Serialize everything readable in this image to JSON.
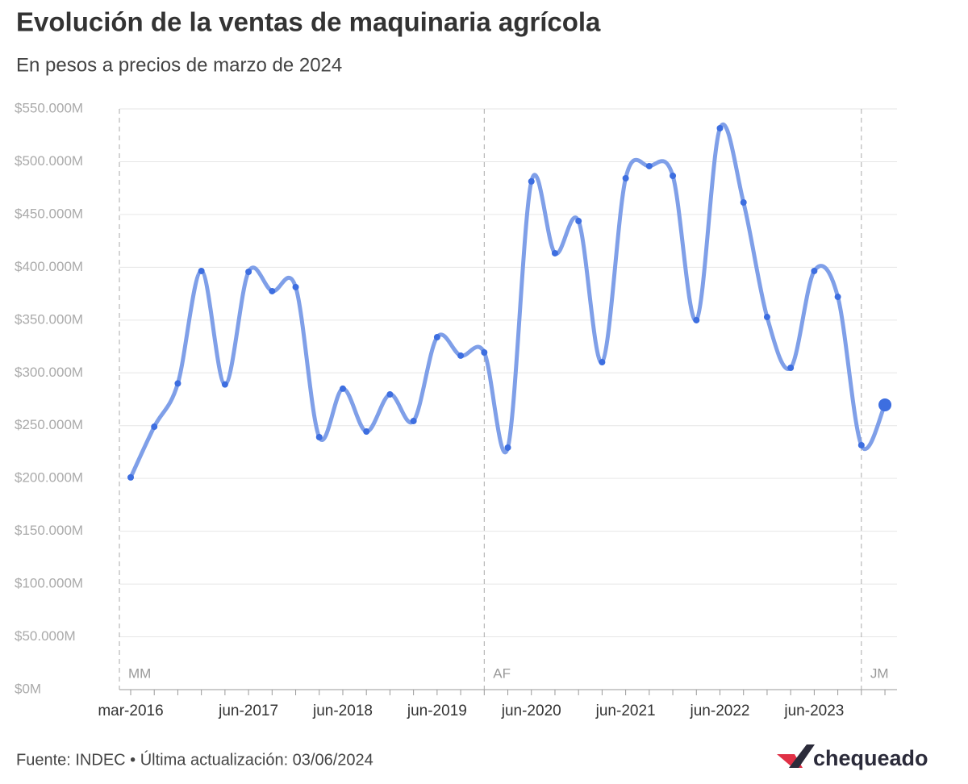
{
  "chart_data": {
    "type": "line",
    "title": "Evolución de la ventas de maquinaria agrícola",
    "subtitle": "En pesos a precios de marzo de 2024",
    "source": "Fuente: INDEC • Última actualización: 03/06/2024",
    "brand": "chequeado",
    "categories": [
      "mar-2016",
      null,
      null,
      null,
      null,
      "jun-2017",
      null,
      null,
      null,
      "jun-2018",
      null,
      null,
      null,
      "jun-2019",
      null,
      null,
      null,
      "jun-2020",
      null,
      null,
      null,
      "jun-2021",
      null,
      null,
      null,
      "jun-2022",
      null,
      null,
      null,
      "jun-2023",
      null,
      null,
      null
    ],
    "series": [
      {
        "color": "#7f9fe8",
        "values": [
          201000,
          249000,
          290000,
          396500,
          289000,
          395700,
          377400,
          381200,
          239100,
          285000,
          244400,
          279600,
          254400,
          333800,
          316300,
          319300,
          229200,
          481300,
          413300,
          443800,
          310100,
          484300,
          495800,
          486600,
          349900,
          531700,
          461400,
          352900,
          304800,
          396500,
          372000,
          231500,
          269700
        ]
      }
    ],
    "ylim": [
      0,
      550000
    ],
    "yticks": [
      {
        "value": 0,
        "label": "$0M"
      },
      {
        "value": 50000,
        "label": "$50.000M"
      },
      {
        "value": 100000,
        "label": "$100.000M"
      },
      {
        "value": 150000,
        "label": "$150.000M"
      },
      {
        "value": 200000,
        "label": "$200.000M"
      },
      {
        "value": 250000,
        "label": "$250.000M"
      },
      {
        "value": 300000,
        "label": "$300.000M"
      },
      {
        "value": 350000,
        "label": "$350.000M"
      },
      {
        "value": 400000,
        "label": "$400.000M"
      },
      {
        "value": 450000,
        "label": "$450.000M"
      },
      {
        "value": 500000,
        "label": "$500.000M"
      },
      {
        "value": 550000,
        "label": "$550.000M"
      }
    ],
    "grid": true,
    "annotations": [
      "MM",
      "AF",
      "JM"
    ]
  }
}
